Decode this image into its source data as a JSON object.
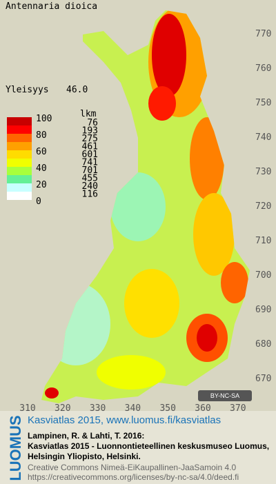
{
  "title": "Antennaria dioica",
  "frequency": {
    "label": "Yleisyys",
    "value": "46.0"
  },
  "legend": {
    "scale_labels": [
      "100",
      "80",
      "60",
      "40",
      "20",
      "0"
    ],
    "count_header": "lkm",
    "counts": [
      "76",
      "193",
      "275",
      "461",
      "601",
      "741",
      "701",
      "455",
      "240",
      "116"
    ],
    "colors": [
      "#c80000",
      "#ff0000",
      "#ff6400",
      "#ffa000",
      "#ffdc00",
      "#f0ff00",
      "#a8ff3c",
      "#64f096",
      "#c8ffff",
      "#ffffff"
    ]
  },
  "axes": {
    "y_labels": [
      "770",
      "760",
      "750",
      "740",
      "730",
      "720",
      "710",
      "700",
      "690",
      "680",
      "670"
    ],
    "x_labels": [
      "310",
      "320",
      "330",
      "340",
      "350",
      "360",
      "370"
    ]
  },
  "license_badge": "BY-NC-SA",
  "footer": {
    "logo": "LUOMUS",
    "heading": "Kasviatlas 2015, www.luomus.fi/kasviatlas",
    "citation": [
      "Lampinen, R. & Lahti, T. 2016:",
      "Kasviatlas 2015 - Luonnontieteellinen keskusmuseo Luomus,",
      "Helsingin Yliopisto, Helsinki."
    ],
    "license": [
      "Creative Commons Nimeä-EiKaupallinen-JaaSamoin 4.0",
      "https://creativecommons.org/licenses/by-nc-sa/4.0/deed.fi"
    ]
  }
}
